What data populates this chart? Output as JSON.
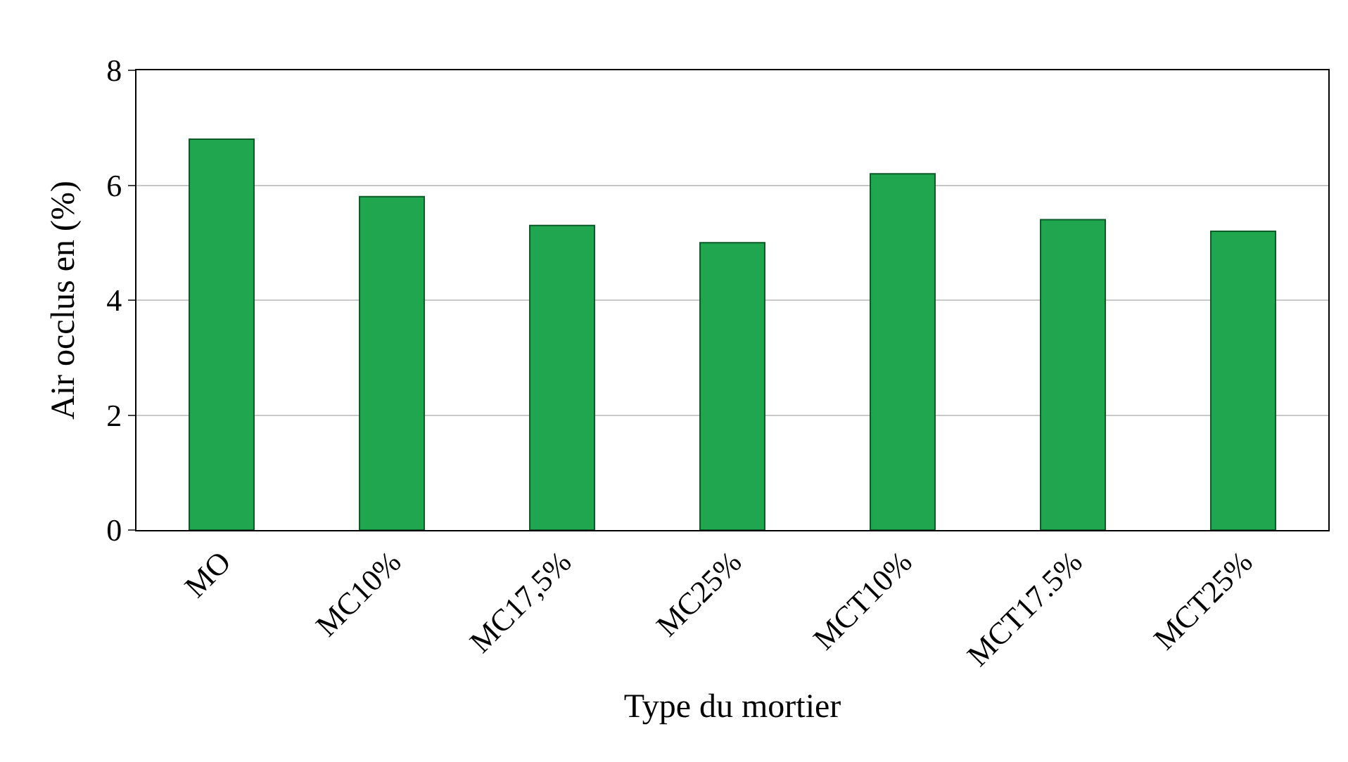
{
  "chart_data": {
    "type": "bar",
    "xlabel": "Type du mortier",
    "ylabel": "Air occlus en (%)",
    "categories": [
      "MO",
      "MC10%",
      "MC17,5%",
      "MC25%",
      "MCT10%",
      "MCT17.5%",
      "MCT25%"
    ],
    "values": [
      6.8,
      5.8,
      5.3,
      5.0,
      6.2,
      5.4,
      5.2
    ],
    "color": "#1fa64f",
    "ylim": [
      0,
      8
    ],
    "yticks": [
      0,
      2,
      4,
      6,
      8
    ],
    "grid": "y"
  }
}
